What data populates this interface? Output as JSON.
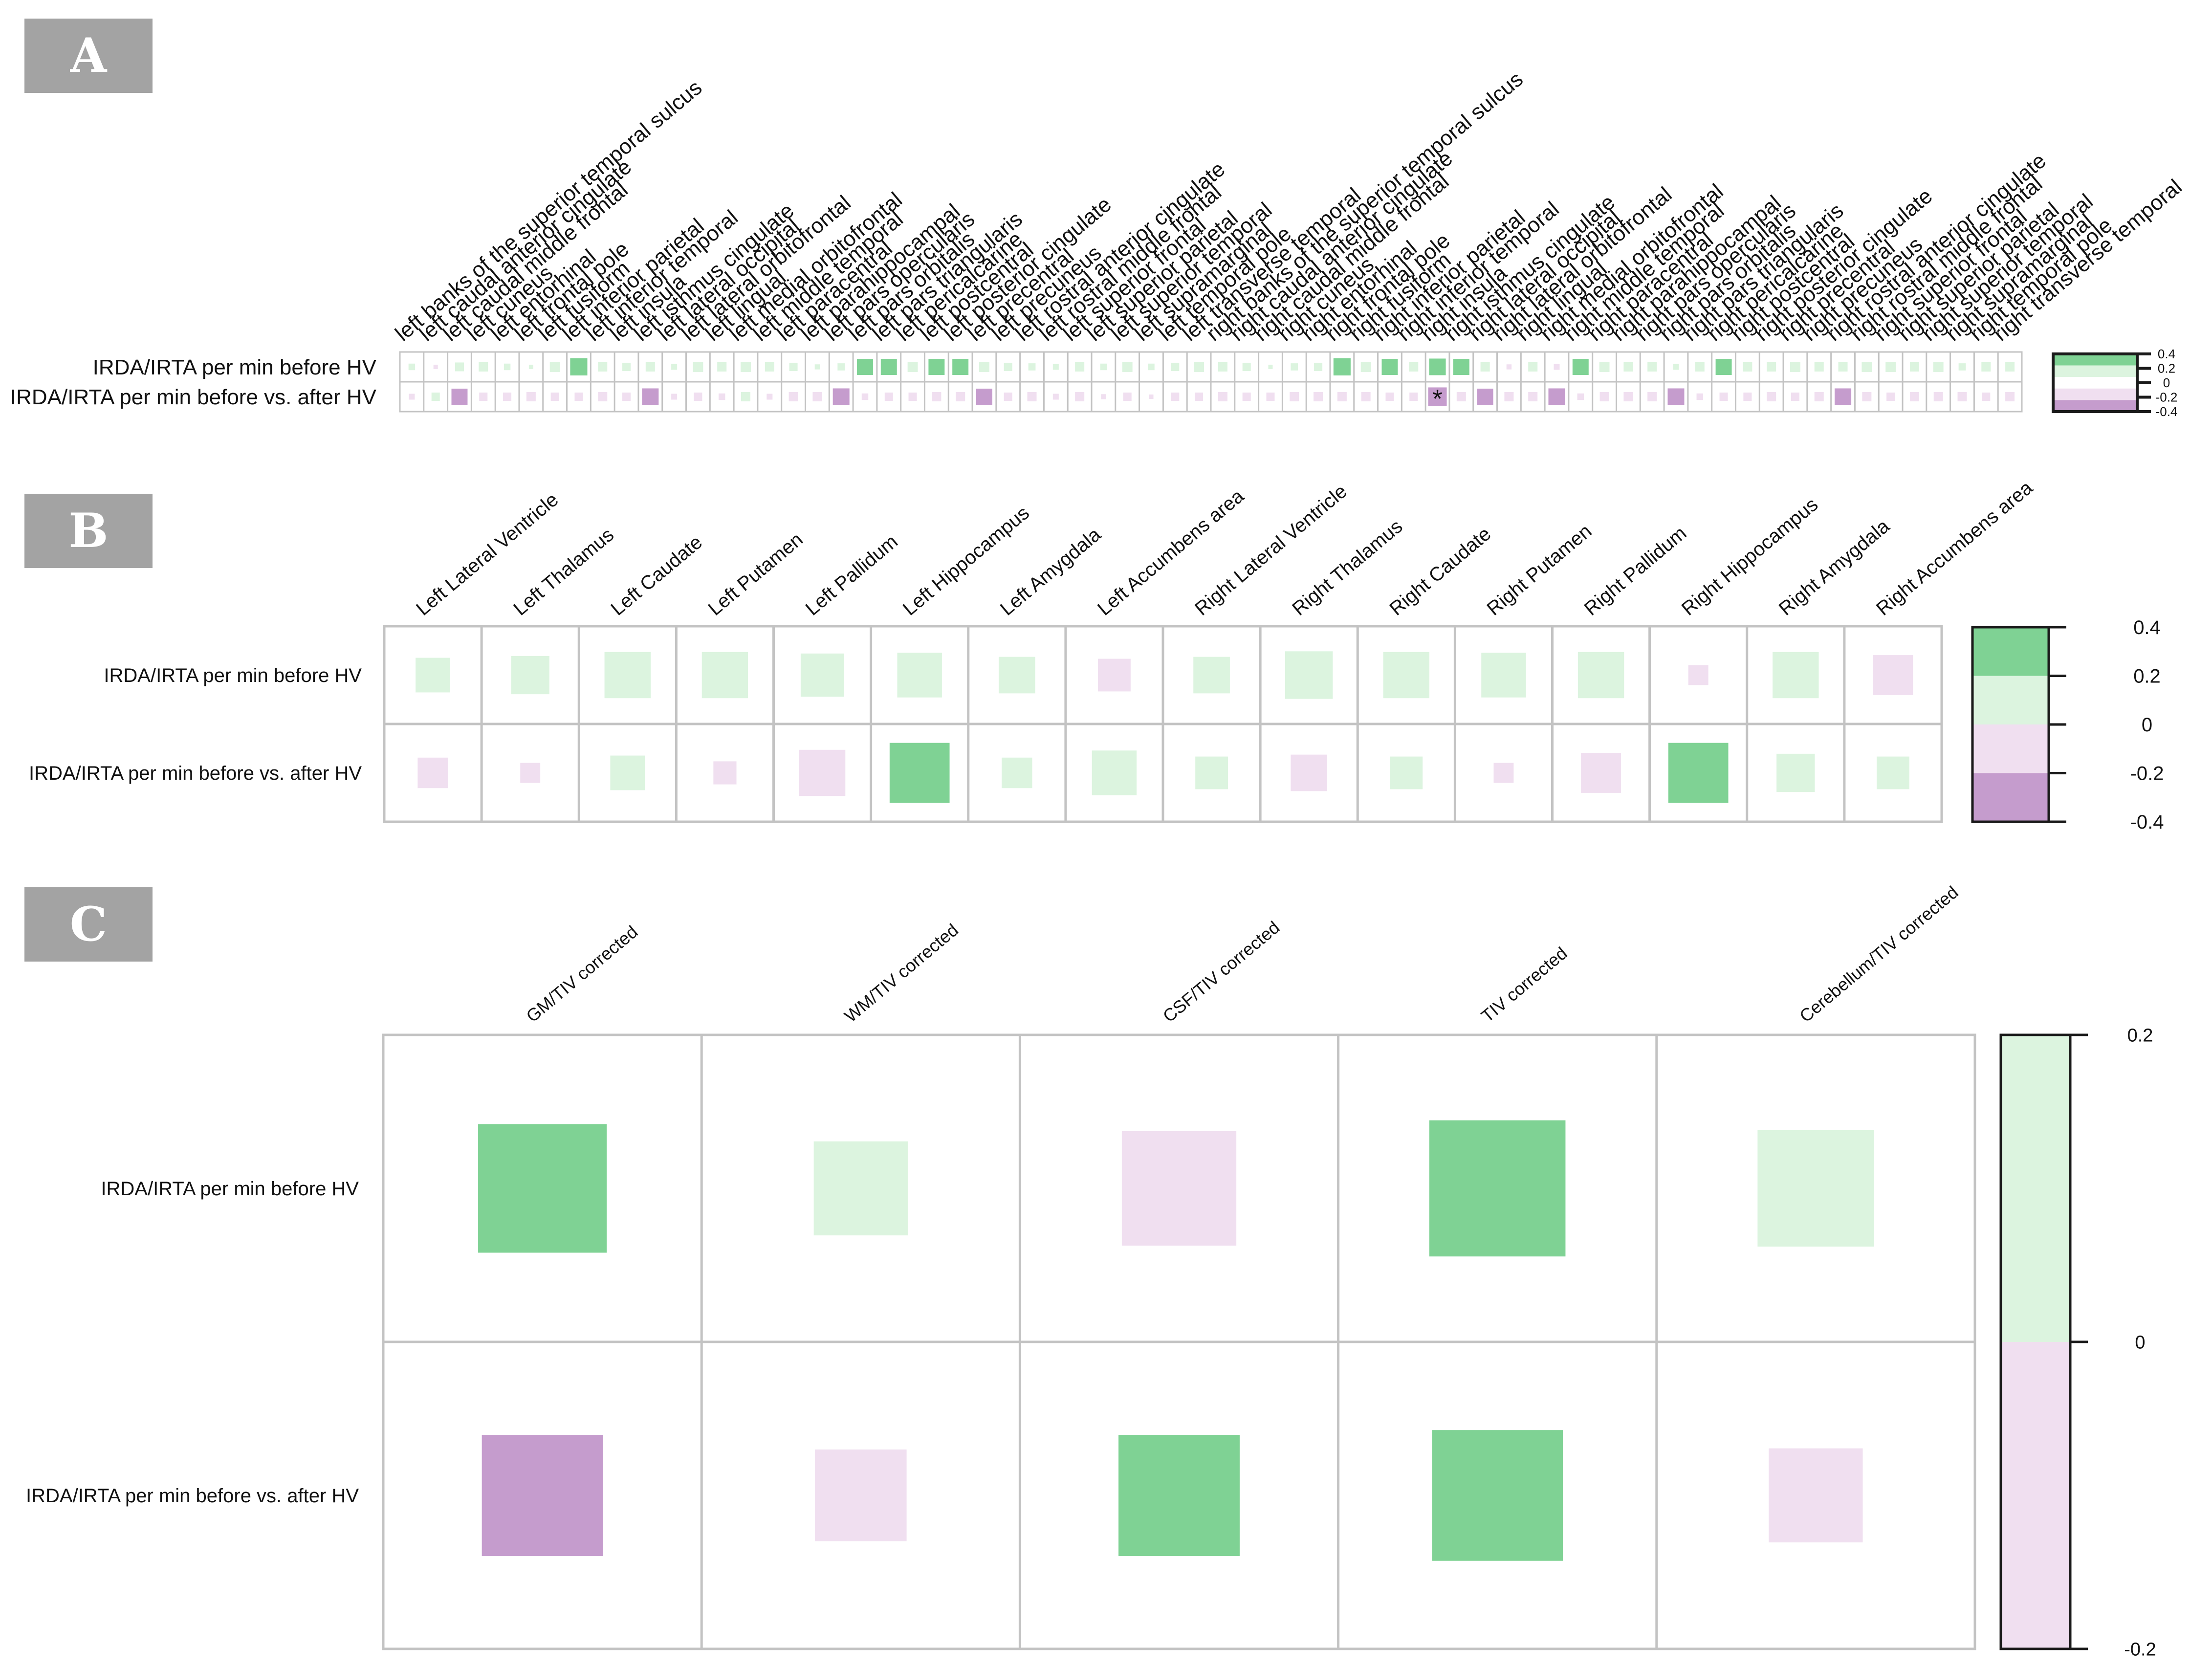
{
  "colors": {
    "green_strong": "#7fd294",
    "green_light": "#dcf4df",
    "pink_light": "#f0dff0",
    "purple_strong": "#c59ccd",
    "grid": "#c3c3c3",
    "colorbar_outline": "#1a1a1a"
  },
  "panels": {
    "A": {
      "badge": "A",
      "rows": [
        "IRDA/IRTA per min before HV",
        "IRDA/IRTA per min before vs. after HV"
      ],
      "star_symbol": "*",
      "colorbar_ticks": [
        "0.4",
        "0.2",
        "0",
        "-0.2",
        "-0.4"
      ]
    },
    "B": {
      "badge": "B",
      "rows": [
        "IRDA/IRTA per min before HV",
        "IRDA/IRTA per min before vs. after HV"
      ],
      "colorbar_ticks": [
        "0.4",
        "0.2",
        "0",
        "-0.2",
        "-0.4"
      ]
    },
    "C": {
      "badge": "C",
      "rows": [
        "IRDA/IRTA per min before HV",
        "IRDA/IRTA per min before vs. after HV"
      ],
      "colorbar_ticks": [
        "0.2",
        "0",
        "-0.2"
      ]
    }
  },
  "chart_data": [
    {
      "type": "heatmap",
      "panel": "A",
      "title": "",
      "value_range": [
        -0.4,
        0.4
      ],
      "columns": [
        "left banks of the superior temporal sulcus",
        "left caudal anterior cingulate",
        "left caudal middle frontal",
        "left cuneus",
        "left entorhinal",
        "left frontal pole",
        "left fusiform",
        "left inferior parietal",
        "left inferior temporal",
        "left insula",
        "left isthmus cingulate",
        "left lateral occipital",
        "left lateral orbitofrontal",
        "left lingual",
        "left medial orbitofrontal",
        "left middle temporal",
        "left paracentral",
        "left parahippocampal",
        "left pars opercularis",
        "left pars orbitalis",
        "left pars triangularis",
        "left pericalcarine",
        "left postcentral",
        "left posterior cingulate",
        "left precentral",
        "left precuneus",
        "left rostral anterior cingulate",
        "left rostral middle frontal",
        "left superior frontal",
        "left superior parietal",
        "left superior temporal",
        "left supramarginal",
        "left temporal pole",
        "left transverse temporal",
        "right banks of the superior temporal sulcus",
        "right caudal anterior cingulate",
        "right caudal middle frontal",
        "right cuneus",
        "right entorhinal",
        "right frontal pole",
        "right fusiform",
        "right inferior parietal",
        "right inferior temporal",
        "right insula",
        "right isthmus cingulate",
        "right lateral occipital",
        "right lateral orbitofrontal",
        "right lingual",
        "right medial orbitofrontal",
        "right middle temporal",
        "right paracentral",
        "right parahippocampal",
        "right pars opercularis",
        "right pars orbitalis",
        "right pars triangularis",
        "right pericalcarine",
        "right postcentral",
        "right posterior cingulate",
        "right precentral",
        "right precuneus",
        "right rostral anterior cingulate",
        "right rostral middle frontal",
        "right superior frontal",
        "right superior parietal",
        "right superior temporal",
        "right supramarginal",
        "right temporal pole",
        "right transverse temporal"
      ],
      "rows": [
        "IRDA/IRTA per min before HV",
        "IRDA/IRTA per min before vs. after HV"
      ],
      "values": [
        [
          0.05,
          -0.02,
          0.09,
          0.1,
          0.05,
          0.02,
          0.12,
          0.34,
          0.1,
          0.08,
          0.1,
          0.04,
          0.12,
          0.1,
          0.12,
          0.1,
          0.08,
          0.03,
          0.06,
          0.3,
          0.3,
          0.12,
          0.3,
          0.3,
          0.12,
          0.08,
          0.06,
          0.04,
          0.1,
          0.05,
          0.12,
          0.05,
          0.08,
          0.12,
          0.1,
          0.08,
          0.02,
          0.06,
          0.08,
          0.34,
          0.12,
          0.3,
          0.1,
          0.32,
          0.3,
          0.1,
          -0.03,
          0.1,
          -0.04,
          0.3,
          0.12,
          0.1,
          0.1,
          0.04,
          0.1,
          0.3,
          0.1,
          0.1,
          0.12,
          0.1,
          0.1,
          0.12,
          0.12,
          0.1,
          0.12,
          0.06,
          0.1,
          0.1
        ],
        [
          -0.04,
          0.08,
          -0.3,
          -0.08,
          -0.08,
          -0.1,
          -0.08,
          -0.08,
          -0.1,
          -0.08,
          -0.32,
          -0.04,
          -0.08,
          -0.05,
          0.1,
          -0.04,
          -0.1,
          -0.1,
          -0.32,
          -0.05,
          -0.08,
          -0.08,
          -0.1,
          -0.1,
          -0.3,
          -0.08,
          -0.1,
          -0.04,
          -0.1,
          -0.03,
          -0.08,
          -0.02,
          -0.08,
          -0.08,
          -0.1,
          -0.08,
          -0.08,
          -0.1,
          -0.1,
          -0.1,
          -0.1,
          -0.08,
          -0.08,
          -0.4,
          -0.1,
          -0.3,
          -0.1,
          -0.1,
          -0.32,
          -0.05,
          -0.1,
          -0.1,
          -0.1,
          -0.32,
          -0.05,
          -0.08,
          -0.08,
          -0.1,
          -0.08,
          -0.1,
          -0.32,
          -0.1,
          -0.08,
          -0.1,
          -0.1,
          -0.1,
          -0.08,
          -0.1
        ]
      ],
      "annotations": [
        {
          "row": 1,
          "column": "right insula",
          "text": "*"
        }
      ]
    },
    {
      "type": "heatmap",
      "panel": "B",
      "title": "",
      "value_range": [
        -0.4,
        0.4
      ],
      "columns": [
        "Left Lateral Ventricle",
        "Left Thalamus",
        "Left Caudate",
        "Left Putamen",
        "Left Pallidum",
        "Left Hippocampus",
        "Left Amygdala",
        "Left Accumbens area",
        "Right Lateral Ventricle",
        "Right Thalamus",
        "Right Caudate",
        "Right Putamen",
        "Right Pallidum",
        "Right Hippocampus",
        "Right Amygdala",
        "Right Accumbens area"
      ],
      "rows": [
        "IRDA/IRTA per min before HV",
        "IRDA/IRTA per min before vs. after HV"
      ],
      "values": [
        [
          0.09,
          0.11,
          0.16,
          0.16,
          0.14,
          0.15,
          0.1,
          -0.08,
          0.1,
          0.17,
          0.16,
          0.15,
          0.16,
          -0.03,
          0.16,
          -0.12
        ],
        [
          -0.07,
          -0.03,
          0.09,
          -0.04,
          -0.16,
          0.27,
          0.07,
          0.15,
          0.08,
          -0.1,
          0.08,
          -0.03,
          -0.12,
          0.27,
          0.11,
          0.08
        ]
      ]
    },
    {
      "type": "heatmap",
      "panel": "C",
      "title": "",
      "value_range": [
        -0.2,
        0.2
      ],
      "columns": [
        "GM/TIV corrected",
        "WM/TIV corrected",
        "CSF/TIV corrected",
        "TIV corrected",
        "Cerebellum/TIV corrected"
      ],
      "rows": [
        "IRDA/IRTA per min before HV",
        "IRDA/IRTA per min before vs. after HV"
      ],
      "values": [
        [
          0.116,
          0.062,
          -0.092,
          0.13,
          0.095
        ],
        [
          -0.103,
          -0.059,
          0.103,
          0.12,
          -0.062
        ]
      ]
    }
  ]
}
